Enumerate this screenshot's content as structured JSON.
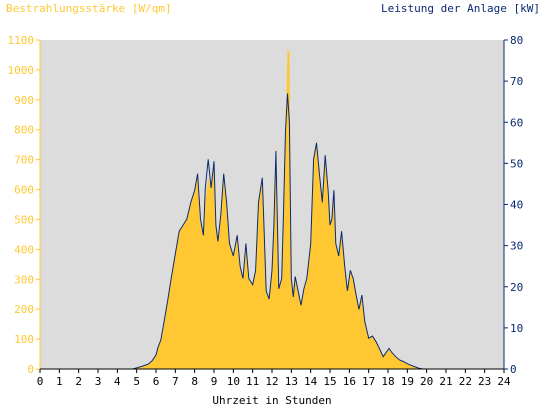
{
  "chart_data": {
    "type": "area",
    "ylabel_left": "Bestrahlungsstärke [W/qm]",
    "ylabel_right": "Leistung der Anlage [kW]",
    "xlabel": "Uhrzeit in Stunden",
    "xlim": [
      0,
      24
    ],
    "ylim_left": [
      0,
      1100
    ],
    "ylim_right": [
      0,
      80
    ],
    "x_ticks": [
      "0",
      "1",
      "2",
      "3",
      "4",
      "5",
      "6",
      "7",
      "8",
      "9",
      "10",
      "11",
      "12",
      "13",
      "14",
      "15",
      "16",
      "17",
      "18",
      "19",
      "20",
      "21",
      "22",
      "23",
      "24"
    ],
    "y_ticks_left": [
      "0",
      "100",
      "200",
      "300",
      "400",
      "500",
      "600",
      "700",
      "800",
      "900",
      "1000",
      "1100"
    ],
    "y_ticks_right": [
      "0",
      "10",
      "20",
      "30",
      "40",
      "50",
      "60",
      "70",
      "80"
    ],
    "grid": false,
    "colors": {
      "plot_bg": "#DCDCDC",
      "irradiance_fill": "#FFC833",
      "power_line": "#0A2A72",
      "left_axis": "#FFC833",
      "right_axis": "#0A2A72"
    },
    "series": [
      {
        "name": "Bestrahlungsstärke",
        "axis": "left",
        "x": [
          0,
          4.8,
          5.0,
          5.3,
          5.6,
          5.8,
          6.0,
          6.1,
          6.25,
          6.4,
          6.6,
          6.8,
          7.0,
          7.2,
          7.4,
          7.6,
          7.8,
          8.0,
          8.15,
          8.3,
          8.45,
          8.55,
          8.7,
          8.85,
          9.0,
          9.1,
          9.2,
          9.35,
          9.5,
          9.65,
          9.8,
          10.0,
          10.2,
          10.35,
          10.5,
          10.65,
          10.8,
          11.0,
          11.15,
          11.3,
          11.5,
          11.7,
          11.85,
          12.0,
          12.1,
          12.2,
          12.35,
          12.5,
          12.6,
          12.7,
          12.8,
          12.9,
          13.0,
          13.1,
          13.2,
          13.35,
          13.5,
          13.65,
          13.8,
          14.0,
          14.15,
          14.3,
          14.45,
          14.6,
          14.75,
          14.9,
          15.0,
          15.1,
          15.2,
          15.3,
          15.45,
          15.6,
          15.75,
          15.9,
          16.05,
          16.2,
          16.35,
          16.5,
          16.65,
          16.8,
          17.0,
          17.2,
          17.4,
          17.6,
          17.75,
          17.9,
          18.05,
          18.2,
          18.4,
          18.6,
          18.8,
          19.0,
          19.2,
          19.4,
          19.6,
          19.8,
          20.0,
          20.2,
          24
        ],
        "values": [
          0,
          0,
          3,
          8,
          15,
          25,
          45,
          70,
          90,
          140,
          220,
          300,
          380,
          460,
          480,
          500,
          560,
          600,
          660,
          500,
          440,
          560,
          640,
          600,
          700,
          480,
          420,
          520,
          660,
          560,
          420,
          380,
          450,
          340,
          300,
          420,
          300,
          280,
          330,
          560,
          640,
          260,
          230,
          330,
          480,
          760,
          270,
          300,
          540,
          800,
          1070,
          1060,
          300,
          240,
          310,
          260,
          210,
          270,
          300,
          420,
          700,
          760,
          650,
          560,
          720,
          600,
          480,
          500,
          600,
          420,
          380,
          460,
          350,
          260,
          330,
          300,
          250,
          200,
          250,
          160,
          100,
          110,
          90,
          60,
          40,
          55,
          70,
          55,
          40,
          30,
          25,
          18,
          12,
          6,
          3,
          0,
          0,
          0,
          0
        ]
      },
      {
        "name": "Leistung",
        "axis": "right",
        "x": [
          0,
          4.8,
          5.0,
          5.3,
          5.6,
          5.8,
          6.0,
          6.1,
          6.25,
          6.4,
          6.6,
          6.8,
          7.0,
          7.2,
          7.4,
          7.6,
          7.8,
          8.0,
          8.15,
          8.3,
          8.45,
          8.55,
          8.7,
          8.85,
          9.0,
          9.1,
          9.2,
          9.35,
          9.5,
          9.65,
          9.8,
          10.0,
          10.2,
          10.35,
          10.5,
          10.65,
          10.8,
          11.0,
          11.15,
          11.3,
          11.5,
          11.7,
          11.85,
          12.0,
          12.1,
          12.2,
          12.35,
          12.5,
          12.6,
          12.7,
          12.8,
          12.9,
          13.0,
          13.1,
          13.2,
          13.35,
          13.5,
          13.65,
          13.8,
          14.0,
          14.15,
          14.3,
          14.45,
          14.6,
          14.75,
          14.9,
          15.0,
          15.1,
          15.2,
          15.3,
          15.45,
          15.6,
          15.75,
          15.9,
          16.05,
          16.2,
          16.35,
          16.5,
          16.65,
          16.8,
          17.0,
          17.2,
          17.4,
          17.6,
          17.75,
          17.9,
          18.05,
          18.2,
          18.4,
          18.6,
          18.8,
          19.0,
          19.2,
          19.4,
          19.6,
          19.8,
          20.0,
          20.2,
          24
        ],
        "values": [
          0,
          0,
          0.3,
          0.7,
          1.2,
          2.0,
          3.4,
          5.2,
          7.0,
          11.0,
          16.5,
          22.5,
          28.0,
          33.5,
          35.0,
          36.5,
          40.5,
          43.5,
          47.5,
          36.5,
          32.5,
          44.0,
          51.0,
          44.0,
          50.5,
          35.0,
          31.0,
          37.5,
          47.5,
          40.5,
          30.5,
          27.5,
          32.5,
          25.0,
          22.0,
          30.5,
          22.0,
          20.5,
          24.0,
          40.5,
          46.5,
          19.0,
          17.0,
          24.0,
          35.0,
          53.0,
          19.5,
          22.0,
          39.0,
          58.0,
          67.0,
          60.0,
          22.0,
          17.5,
          22.5,
          19.0,
          15.5,
          19.5,
          22.0,
          30.5,
          51.0,
          55.0,
          47.5,
          40.5,
          52.0,
          43.5,
          35.0,
          36.5,
          43.5,
          30.5,
          27.5,
          33.5,
          25.5,
          19.0,
          24.0,
          22.0,
          18.0,
          14.5,
          18.0,
          11.5,
          7.5,
          8.0,
          6.5,
          4.5,
          3.0,
          4.0,
          5.0,
          4.0,
          3.0,
          2.2,
          1.8,
          1.3,
          0.9,
          0.5,
          0.2,
          0,
          0,
          0,
          0
        ]
      }
    ]
  }
}
